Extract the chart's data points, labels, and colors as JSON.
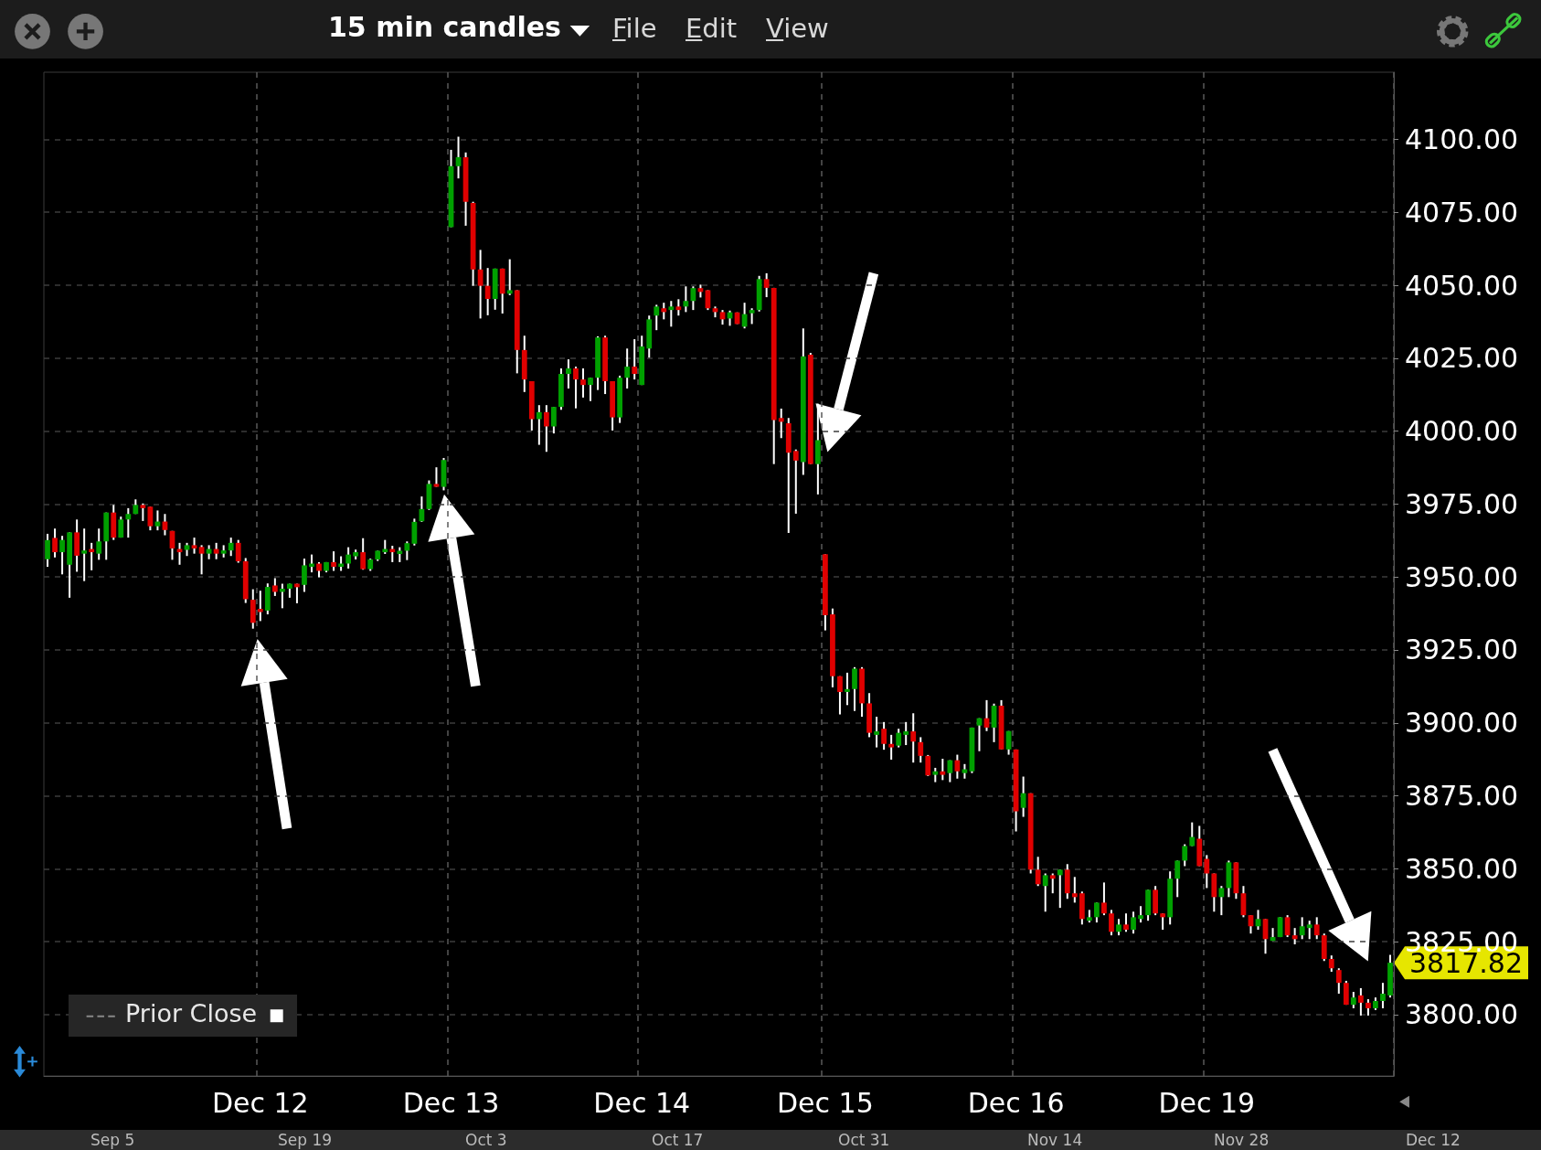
{
  "chart_data": {
    "type": "candlestick",
    "title": "15 min candles",
    "categories": [
      null,
      null,
      null,
      null,
      null,
      null,
      null,
      null,
      null,
      null,
      null,
      null,
      null,
      null,
      null,
      null,
      null,
      null,
      null,
      null,
      null,
      null,
      null,
      null,
      null,
      null,
      null,
      null,
      null,
      "Dec 12",
      null,
      null,
      null,
      null,
      null,
      null,
      null,
      null,
      null,
      null,
      null,
      null,
      null,
      null,
      null,
      null,
      null,
      null,
      null,
      null,
      null,
      null,
      null,
      null,
      null,
      "Dec 13",
      null,
      null,
      null,
      null,
      null,
      null,
      null,
      null,
      null,
      null,
      null,
      null,
      null,
      null,
      null,
      null,
      null,
      null,
      null,
      null,
      null,
      null,
      null,
      null,
      null,
      "Dec 14",
      null,
      null,
      null,
      null,
      null,
      null,
      null,
      null,
      null,
      null,
      null,
      null,
      null,
      null,
      null,
      null,
      null,
      null,
      null,
      null,
      null,
      null,
      null,
      null,
      "Dec 15",
      null,
      null,
      null,
      null,
      null,
      null,
      null,
      null,
      null,
      null,
      null,
      null,
      null,
      null,
      null,
      null,
      null,
      null,
      null,
      null,
      null,
      null,
      null,
      null,
      null,
      "Dec 16",
      null,
      null,
      null,
      null,
      null,
      null,
      null,
      null,
      null,
      null,
      null,
      null,
      null,
      null,
      null,
      null,
      null,
      null,
      null,
      null,
      null,
      null,
      null,
      null,
      null,
      "Dec 19",
      null,
      null,
      null,
      null,
      null,
      null,
      null,
      null,
      null,
      null,
      null,
      null,
      null,
      null,
      null,
      null,
      null,
      null,
      null,
      null,
      null,
      null,
      null,
      null,
      null
    ],
    "ohlc": [
      [
        3956.1,
        3964.8,
        3953.5,
        3962.7
      ],
      [
        3963.4,
        3966.6,
        3956.7,
        3958.5
      ],
      [
        3958.5,
        3964.1,
        3950.9,
        3962.7
      ],
      [
        3954.2,
        3965.3,
        3942.9,
        3965.3
      ],
      [
        3965.3,
        3969.7,
        3951.8,
        3957.3
      ],
      [
        3958.0,
        3966.6,
        3948.6,
        3959.1
      ],
      [
        3959.6,
        3961.7,
        3952.3,
        3958.5
      ],
      [
        3958.0,
        3966.6,
        3955.9,
        3962.2
      ],
      [
        3962.2,
        3972.1,
        3955.9,
        3972.1
      ],
      [
        3972.1,
        3974.7,
        3962.7,
        3963.5
      ],
      [
        3963.5,
        3970.7,
        3963.5,
        3969.7
      ],
      [
        3969.7,
        3973.6,
        3963.5,
        3971.6
      ],
      [
        3971.6,
        3976.6,
        3971.6,
        3974.7
      ],
      [
        3974.7,
        3975.2,
        3969.2,
        3973.6
      ],
      [
        3974.1,
        3974.1,
        3966.0,
        3967.4
      ],
      [
        3967.4,
        3972.8,
        3966.0,
        3969.0
      ],
      [
        3969.0,
        3971.6,
        3964.3,
        3966.1
      ],
      [
        3965.8,
        3965.8,
        3955.9,
        3959.8
      ],
      [
        3959.6,
        3961.7,
        3954.2,
        3958.5
      ],
      [
        3959.3,
        3961.7,
        3957.2,
        3960.9
      ],
      [
        3960.9,
        3963.5,
        3958.0,
        3959.8
      ],
      [
        3960.3,
        3960.9,
        3950.9,
        3958.0
      ],
      [
        3958.0,
        3960.9,
        3956.1,
        3959.6
      ],
      [
        3959.6,
        3961.7,
        3956.1,
        3958.0
      ],
      [
        3958.0,
        3960.9,
        3956.7,
        3959.1
      ],
      [
        3959.1,
        3963.5,
        3957.2,
        3961.7
      ],
      [
        3961.7,
        3962.7,
        3954.9,
        3955.4
      ],
      [
        3955.4,
        3956.5,
        3941.1,
        3942.4
      ],
      [
        3942.2,
        3945.8,
        3932.3,
        3934.3
      ],
      [
        3939.1,
        3945.3,
        3934.9,
        3938.0
      ],
      [
        3938.5,
        3947.8,
        3937.2,
        3946.6
      ],
      [
        3947.1,
        3949.6,
        3943.5,
        3944.9
      ],
      [
        3944.9,
        3947.7,
        3939.3,
        3946.0
      ],
      [
        3946.0,
        3947.7,
        3942.9,
        3947.7
      ],
      [
        3947.7,
        3947.7,
        3941.0,
        3946.5
      ],
      [
        3947.3,
        3956.3,
        3944.9,
        3954.0
      ],
      [
        3953.5,
        3957.7,
        3951.6,
        3954.6
      ],
      [
        3954.6,
        3955.1,
        3949.9,
        3952.1
      ],
      [
        3952.1,
        3955.1,
        3951.6,
        3955.1
      ],
      [
        3955.1,
        3958.8,
        3952.1,
        3953.5
      ],
      [
        3953.5,
        3957.1,
        3952.1,
        3954.6
      ],
      [
        3954.6,
        3960.2,
        3952.9,
        3957.7
      ],
      [
        3957.1,
        3959.4,
        3956.0,
        3958.5
      ],
      [
        3958.5,
        3963.3,
        3952.5,
        3952.7
      ],
      [
        3952.7,
        3956.3,
        3952.1,
        3956.0
      ],
      [
        3956.0,
        3959.0,
        3955.5,
        3959.0
      ],
      [
        3958.5,
        3962.7,
        3957.9,
        3959.6
      ],
      [
        3959.6,
        3960.7,
        3955.1,
        3958.5
      ],
      [
        3957.9,
        3960.2,
        3955.1,
        3959.0
      ],
      [
        3959.0,
        3962.2,
        3955.8,
        3961.6
      ],
      [
        3961.4,
        3970.0,
        3960.8,
        3968.9
      ],
      [
        3969.1,
        3977.6,
        3968.9,
        3973.3
      ],
      [
        3973.3,
        3983.1,
        3973.0,
        3981.9
      ],
      [
        3981.9,
        3987.6,
        3980.9,
        3980.9
      ],
      [
        3980.9,
        3990.8,
        3979.7,
        3990.1
      ],
      [
        4069.9,
        4096.4,
        4069.9,
        4090.8
      ],
      [
        4090.8,
        4100.9,
        4086.6,
        4093.9
      ],
      [
        4093.9,
        4095.5,
        4070.4,
        4078.6
      ],
      [
        4078.2,
        4078.6,
        4049.8,
        4055.4
      ],
      [
        4055.4,
        4062.1,
        4038.6,
        4049.8
      ],
      [
        4049.8,
        4055.9,
        4039.7,
        4045.3
      ],
      [
        4045.3,
        4055.7,
        4041.6,
        4055.7
      ],
      [
        4055.7,
        4055.7,
        4040.3,
        4047.1
      ],
      [
        4047.1,
        4058.9,
        4046.6,
        4048.3
      ],
      [
        4048.3,
        4048.3,
        4019.8,
        4027.8
      ],
      [
        4027.8,
        4032.7,
        4013.4,
        4017.7
      ],
      [
        4017.1,
        4017.1,
        4000.2,
        4004.1
      ],
      [
        4004.1,
        4008.9,
        3995.3,
        4006.5
      ],
      [
        4006.5,
        4008.9,
        3992.9,
        4001.6
      ],
      [
        4001.6,
        4008.3,
        3999.2,
        4008.3
      ],
      [
        4008.3,
        4021.5,
        4007.3,
        4019.6
      ],
      [
        4019.6,
        4024.6,
        4014.6,
        4021.5
      ],
      [
        4021.5,
        4022.1,
        4007.8,
        4017.7
      ],
      [
        4017.7,
        4021.5,
        4011.5,
        4015.8
      ],
      [
        4015.8,
        4018.3,
        4010.3,
        4018.3
      ],
      [
        4018.3,
        4032.5,
        4014.1,
        4032.1
      ],
      [
        4032.1,
        4032.7,
        4012.7,
        4017.1
      ],
      [
        4017.1,
        4017.1,
        4000.2,
        4004.7
      ],
      [
        4004.7,
        4019.0,
        4002.8,
        4018.3
      ],
      [
        4018.3,
        4028.3,
        4014.6,
        4022.1
      ],
      [
        4022.1,
        4031.5,
        4017.7,
        4019.6
      ],
      [
        4015.8,
        4032.7,
        4015.8,
        4029.0
      ],
      [
        4028.3,
        4039.6,
        4025.2,
        4038.3
      ],
      [
        4039.6,
        4043.3,
        4034.6,
        4042.7
      ],
      [
        4042.1,
        4044.0,
        4038.3,
        4040.8
      ],
      [
        4041.5,
        4044.6,
        4035.8,
        4042.7
      ],
      [
        4042.7,
        4045.2,
        4039.6,
        4041.5
      ],
      [
        4042.7,
        4049.6,
        4040.8,
        4044.6
      ],
      [
        4044.6,
        4049.6,
        4041.5,
        4049.0
      ],
      [
        4049.0,
        4050.2,
        4045.8,
        4047.7
      ],
      [
        4048.3,
        4048.3,
        4041.5,
        4042.1
      ],
      [
        4042.1,
        4042.7,
        4039.0,
        4040.8
      ],
      [
        4040.8,
        4041.5,
        4036.5,
        4038.3
      ],
      [
        4038.6,
        4041.3,
        4036.1,
        4040.7
      ],
      [
        4040.7,
        4040.7,
        4036.7,
        4036.7
      ],
      [
        4035.8,
        4044.0,
        4035.2,
        4040.1
      ],
      [
        4040.4,
        4042.1,
        4036.7,
        4041.5
      ],
      [
        4041.5,
        4053.2,
        4041.0,
        4052.1
      ],
      [
        4052.1,
        4054.1,
        4045.9,
        4049.1
      ],
      [
        4049.1,
        4049.1,
        3988.7,
        4003.8
      ],
      [
        4004.5,
        4007.7,
        3997.6,
        4003.2
      ],
      [
        4002.7,
        4004.5,
        3965.1,
        3992.6
      ],
      [
        3993.2,
        3993.7,
        3971.7,
        3989.9
      ],
      [
        3989.4,
        4035.2,
        3985.0,
        4025.6
      ],
      [
        4026.2,
        4026.8,
        3988.7,
        3988.7
      ],
      [
        3988.7,
        4009.4,
        3978.3,
        3996.9
      ],
      [
        3957.8,
        3957.8,
        3931.7,
        3936.9
      ],
      [
        3937.2,
        3939.2,
        3912.2,
        3916.0
      ],
      [
        3916.0,
        3916.0,
        3902.9,
        3910.6
      ],
      [
        3910.6,
        3917.2,
        3906.1,
        3911.6
      ],
      [
        3911.6,
        3919.1,
        3904.1,
        3918.6
      ],
      [
        3918.6,
        3919.1,
        3902.1,
        3906.7
      ],
      [
        3906.7,
        3910.2,
        3895.1,
        3896.6
      ],
      [
        3895.9,
        3902.1,
        3891.6,
        3897.1
      ],
      [
        3898.0,
        3900.3,
        3890.8,
        3892.8
      ],
      [
        3892.8,
        3895.9,
        3887.4,
        3891.6
      ],
      [
        3892.2,
        3898.0,
        3891.6,
        3896.6
      ],
      [
        3895.9,
        3900.3,
        3892.4,
        3897.1
      ],
      [
        3897.1,
        3903.3,
        3886.4,
        3893.6
      ],
      [
        3893.4,
        3895.1,
        3886.4,
        3888.7
      ],
      [
        3888.7,
        3889.0,
        3881.8,
        3882.0
      ],
      [
        3882.2,
        3884.6,
        3879.7,
        3883.4
      ],
      [
        3883.4,
        3887.7,
        3880.4,
        3882.2
      ],
      [
        3882.8,
        3887.2,
        3879.7,
        3887.2
      ],
      [
        3887.2,
        3889.1,
        3880.9,
        3883.4
      ],
      [
        3882.8,
        3885.9,
        3880.9,
        3884.1
      ],
      [
        3883.4,
        3898.4,
        3882.8,
        3898.4
      ],
      [
        3899.1,
        3901.6,
        3890.3,
        3901.6
      ],
      [
        3901.6,
        3907.8,
        3897.2,
        3898.4
      ],
      [
        3898.4,
        3906.6,
        3893.4,
        3905.9
      ],
      [
        3905.9,
        3907.8,
        3890.9,
        3890.9
      ],
      [
        3890.9,
        3897.2,
        3889.1,
        3897.2
      ],
      [
        3890.9,
        3890.9,
        3862.8,
        3869.7
      ],
      [
        3870.9,
        3881.6,
        3867.8,
        3875.9
      ],
      [
        3875.9,
        3875.9,
        3848.4,
        3849.7
      ],
      [
        3849.7,
        3854.1,
        3844.1,
        3844.7
      ],
      [
        3844.1,
        3848.4,
        3835.3,
        3847.8
      ],
      [
        3847.8,
        3848.4,
        3841.6,
        3846.6
      ],
      [
        3847.8,
        3849.7,
        3836.6,
        3849.7
      ],
      [
        3849.7,
        3851.6,
        3839.7,
        3841.6
      ],
      [
        3841.6,
        3847.2,
        3838.4,
        3840.3
      ],
      [
        3841.6,
        3842.2,
        3830.9,
        3832.8
      ],
      [
        3832.2,
        3835.9,
        3831.6,
        3833.4
      ],
      [
        3833.4,
        3838.4,
        3831.6,
        3838.4
      ],
      [
        3838.4,
        3845.3,
        3834.1,
        3834.7
      ],
      [
        3834.7,
        3835.9,
        3827.2,
        3828.4
      ],
      [
        3828.4,
        3832.8,
        3827.2,
        3830.9
      ],
      [
        3830.9,
        3834.7,
        3828.4,
        3829.1
      ],
      [
        3829.1,
        3835.3,
        3827.8,
        3833.4
      ],
      [
        3832.8,
        3837.2,
        3831.6,
        3834.1
      ],
      [
        3834.1,
        3842.8,
        3832.2,
        3842.8
      ],
      [
        3842.8,
        3844.1,
        3834.1,
        3834.7
      ],
      [
        3834.7,
        3834.7,
        3829.1,
        3833.4
      ],
      [
        3833.4,
        3849.1,
        3830.9,
        3846.6
      ],
      [
        3846.6,
        3852.8,
        3840.3,
        3852.8
      ],
      [
        3852.8,
        3858.4,
        3850.9,
        3857.8
      ],
      [
        3857.8,
        3865.9,
        3857.8,
        3860.9
      ],
      [
        3860.3,
        3864.7,
        3850.9,
        3850.9
      ],
      [
        3853.4,
        3854.7,
        3843.4,
        3848.4
      ],
      [
        3848.4,
        3848.4,
        3835.3,
        3840.3
      ],
      [
        3840.3,
        3844.1,
        3834.1,
        3843.4
      ],
      [
        3843.4,
        3852.8,
        3840.3,
        3852.2
      ],
      [
        3852.2,
        3852.2,
        3839.7,
        3841.6
      ],
      [
        3841.6,
        3844.1,
        3833.4,
        3834.1
      ],
      [
        3834.1,
        3834.1,
        3827.8,
        3830.3
      ],
      [
        3830.3,
        3835.9,
        3829.1,
        3832.8
      ],
      [
        3832.8,
        3832.8,
        3820.9,
        3825.9
      ],
      [
        3825.3,
        3829.7,
        3825.3,
        3826.6
      ],
      [
        3826.6,
        3833.4,
        3826.6,
        3833.4
      ],
      [
        3833.4,
        3834.1,
        3826.6,
        3827.2
      ],
      [
        3827.2,
        3829.7,
        3824.1,
        3825.9
      ],
      [
        3827.2,
        3833.4,
        3825.9,
        3830.3
      ],
      [
        3829.7,
        3832.2,
        3825.9,
        3830.9
      ],
      [
        3830.9,
        3833.4,
        3825.9,
        3827.2
      ],
      [
        3827.2,
        3827.8,
        3818.4,
        3819.1
      ],
      [
        3819.1,
        3820.3,
        3814.7,
        3815.9
      ],
      [
        3815.3,
        3815.9,
        3807.2,
        3810.9
      ],
      [
        3810.9,
        3811.6,
        3803.4,
        3803.4
      ],
      [
        3803.4,
        3807.8,
        3802.2,
        3805.9
      ],
      [
        3806.6,
        3809.1,
        3799.7,
        3804.1
      ],
      [
        3804.1,
        3805.3,
        3799.7,
        3802.2
      ],
      [
        3802.2,
        3805.9,
        3801.6,
        3804.7
      ],
      [
        3804.7,
        3810.9,
        3802.2,
        3807.2
      ],
      [
        3806.6,
        3820.5,
        3805.9,
        3817.8
      ]
    ],
    "colors": [
      "#00a000",
      "#e00000",
      "#00a000",
      "#00a000",
      "#e00000",
      "#00a000",
      "#e00000",
      "#00a000",
      "#00a000",
      "#e00000",
      "#00a000",
      "#00a000",
      "#00a000",
      "#e00000",
      "#e00000",
      "#00a000",
      "#e00000",
      "#e00000",
      "#e00000",
      "#00a000",
      "#e00000",
      "#e00000",
      "#00a000",
      "#e00000",
      "#00a000",
      "#00a000",
      "#e00000",
      "#e00000",
      "#e00000",
      "#e00000",
      "#00a000",
      "#e00000",
      "#00a000",
      "#00a000",
      "#e00000",
      "#00a000",
      "#00a000",
      "#e00000",
      "#00a000",
      "#e00000",
      "#00a000",
      "#00a000",
      "#00a000",
      "#e00000",
      "#00a000",
      "#00a000",
      "#00a000",
      "#e00000",
      "#00a000",
      "#00a000",
      "#00a000",
      "#00a000",
      "#00a000",
      "#e00000",
      "#00a000",
      "#00a000",
      "#00a000",
      "#e00000",
      "#e00000",
      "#e00000",
      "#e00000",
      "#00a000",
      "#e00000",
      "#00a000",
      "#e00000",
      "#e00000",
      "#e00000",
      "#00a000",
      "#e00000",
      "#00a000",
      "#00a000",
      "#00a000",
      "#e00000",
      "#e00000",
      "#00a000",
      "#00a000",
      "#e00000",
      "#e00000",
      "#00a000",
      "#00a000",
      "#e00000",
      "#00a000",
      "#00a000",
      "#00a000",
      "#e00000",
      "#00a000",
      "#e00000",
      "#00a000",
      "#00a000",
      "#e00000",
      "#e00000",
      "#e00000",
      "#e00000",
      "#00a000",
      "#e00000",
      "#00a000",
      "#00a000",
      "#00a000",
      "#e00000",
      "#e00000",
      "#e00000",
      "#e00000",
      "#e00000",
      "#00a000",
      "#e00000",
      "#00a000",
      "#e00000",
      "#e00000",
      "#e00000",
      "#00a000",
      "#00a000",
      "#e00000",
      "#e00000",
      "#00a000",
      "#e00000",
      "#e00000",
      "#00a000",
      "#00a000",
      "#e00000",
      "#e00000",
      "#e00000",
      "#00a000",
      "#e00000",
      "#00a000",
      "#e00000",
      "#00a000",
      "#00a000",
      "#00a000",
      "#e00000",
      "#00a000",
      "#e00000",
      "#00a000",
      "#e00000",
      "#00a000",
      "#e00000",
      "#e00000",
      "#00a000",
      "#e00000",
      "#00a000",
      "#e00000",
      "#e00000",
      "#e00000",
      "#00a000",
      "#00a000",
      "#e00000",
      "#e00000",
      "#00a000",
      "#e00000",
      "#00a000",
      "#00a000",
      "#00a000",
      "#e00000",
      "#e00000",
      "#00a000",
      "#00a000",
      "#00a000",
      "#00a000",
      "#e00000",
      "#e00000",
      "#e00000",
      "#00a000",
      "#00a000",
      "#e00000",
      "#e00000",
      "#e00000",
      "#00a000",
      "#e00000",
      "#00a000",
      "#00a000",
      "#e00000",
      "#e00000",
      "#00a000",
      "#00a000",
      "#e00000",
      "#e00000",
      "#e00000",
      "#e00000",
      "#e00000",
      "#00a000",
      "#e00000",
      "#e00000",
      "#00a000",
      "#00a000",
      "#00a000"
    ],
    "ylim": [
      3779,
      4123
    ],
    "yticks": [
      {
        "value": 3800,
        "label": "3800.00"
      },
      {
        "value": 3825,
        "label": "3825.00"
      },
      {
        "value": 3850,
        "label": "3850.00"
      },
      {
        "value": 3875,
        "label": "3875.00"
      },
      {
        "value": 3900,
        "label": "3900.00"
      },
      {
        "value": 3925,
        "label": "3925.00"
      },
      {
        "value": 3950,
        "label": "3950.00"
      },
      {
        "value": 3975,
        "label": "3975.00"
      },
      {
        "value": 4000,
        "label": "4000.00"
      },
      {
        "value": 4025,
        "label": "4025.00"
      },
      {
        "value": 4050,
        "label": "4050.00"
      },
      {
        "value": 4075,
        "label": "4075.00"
      },
      {
        "value": 4100,
        "label": "4100.00"
      }
    ],
    "grid": true,
    "annotations": [
      "File",
      "Edit",
      "View",
      "Prior Close",
      "3817.82",
      "Sep 5",
      "Sep 19",
      "Oct 3",
      "Oct 17",
      "Oct 31",
      "Nov 14",
      "Nov 28",
      "Dec 12"
    ]
  }
}
